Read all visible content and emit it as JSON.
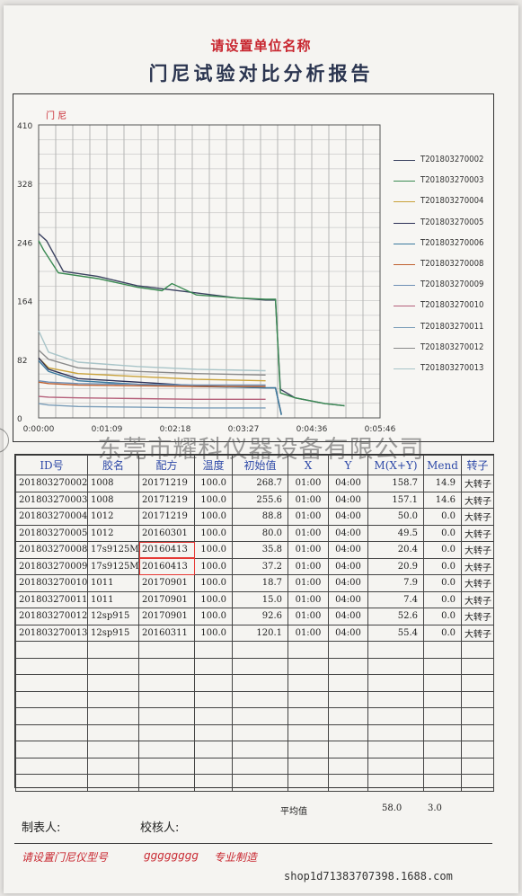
{
  "header": {
    "company": "请设置单位名称",
    "title": "门尼试验对比分析报告"
  },
  "chart_data": {
    "type": "line",
    "ylabel": "门 尼",
    "yticks": [
      "410",
      "328",
      "246",
      "164",
      "82",
      "0"
    ],
    "xticks": [
      "0:00:00",
      "0:01:09",
      "0:02:18",
      "0:03:27",
      "0:04:36",
      "0:05:46"
    ],
    "xlim": [
      0,
      346
    ],
    "ylim": [
      0,
      410
    ],
    "series": [
      {
        "name": "T201803270002",
        "color": "#3b4260",
        "x": [
          0,
          8,
          25,
          60,
          100,
          160,
          200,
          230,
          240,
          245,
          260,
          290,
          310
        ],
        "y": [
          258,
          248,
          205,
          198,
          185,
          175,
          168,
          165,
          165,
          40,
          28,
          20,
          17
        ]
      },
      {
        "name": "T201803270003",
        "color": "#3a8a52",
        "x": [
          0,
          5,
          20,
          60,
          100,
          125,
          135,
          160,
          200,
          230,
          240,
          245,
          260,
          290,
          310
        ],
        "y": [
          248,
          235,
          203,
          195,
          183,
          178,
          188,
          172,
          168,
          166,
          166,
          35,
          28,
          20,
          17
        ]
      },
      {
        "name": "T201803270004",
        "color": "#c9a23a",
        "x": [
          0,
          10,
          40,
          100,
          160,
          230
        ],
        "y": [
          84,
          70,
          62,
          58,
          54,
          52
        ]
      },
      {
        "name": "T201803270005",
        "color": "#2b2f55",
        "x": [
          0,
          10,
          40,
          100,
          160,
          230,
          240,
          246
        ],
        "y": [
          84,
          68,
          55,
          50,
          45,
          42,
          42,
          5
        ]
      },
      {
        "name": "T201803270006",
        "color": "#3b7a9e",
        "x": [
          0,
          10,
          40,
          100,
          160,
          230,
          240,
          246
        ],
        "y": [
          80,
          65,
          52,
          47,
          44,
          42,
          42,
          4
        ]
      },
      {
        "name": "T201803270008",
        "color": "#c0602f",
        "x": [
          0,
          10,
          40,
          100,
          160,
          230
        ],
        "y": [
          50,
          48,
          46,
          45,
          44,
          44
        ]
      },
      {
        "name": "T201803270009",
        "color": "#6e8fb5",
        "x": [
          0,
          10,
          40,
          100,
          160,
          230
        ],
        "y": [
          52,
          50,
          48,
          47,
          46,
          46
        ]
      },
      {
        "name": "T201803270010",
        "color": "#b5607a",
        "x": [
          0,
          10,
          40,
          100,
          160,
          230
        ],
        "y": [
          30,
          29,
          28,
          27,
          26,
          26
        ]
      },
      {
        "name": "T201803270011",
        "color": "#7a9db8",
        "x": [
          0,
          10,
          40,
          100,
          160,
          230
        ],
        "y": [
          20,
          18,
          16,
          15,
          14,
          14
        ]
      },
      {
        "name": "T201803270012",
        "color": "#8a8a8a",
        "x": [
          0,
          10,
          40,
          100,
          160,
          230
        ],
        "y": [
          95,
          82,
          70,
          65,
          62,
          60
        ]
      },
      {
        "name": "T201803270013",
        "color": "#a8c4c8",
        "x": [
          0,
          10,
          40,
          100,
          160,
          230
        ],
        "y": [
          122,
          92,
          78,
          72,
          68,
          66
        ]
      }
    ]
  },
  "table": {
    "headers": [
      "ID号",
      "胶名",
      "配方",
      "温度",
      "初始值",
      "X",
      "Y",
      "M(X+Y)",
      "Mend",
      "转子"
    ],
    "rows": [
      [
        "201803270002",
        "1008",
        "20171219",
        "100.0",
        "268.7",
        "01:00",
        "04:00",
        "158.7",
        "14.9",
        "大转子"
      ],
      [
        "201803270003",
        "1008",
        "20171219",
        "100.0",
        "255.6",
        "01:00",
        "04:00",
        "157.1",
        "14.6",
        "大转子"
      ],
      [
        "201803270004",
        "1012",
        "20171219",
        "100.0",
        "88.8",
        "01:00",
        "04:00",
        "50.0",
        "0.0",
        "大转子"
      ],
      [
        "201803270005",
        "1012",
        "20160301",
        "100.0",
        "80.0",
        "01:00",
        "04:00",
        "49.5",
        "0.0",
        "大转子"
      ],
      [
        "201803270008",
        "17s9125M",
        "20160413",
        "100.0",
        "35.8",
        "01:00",
        "04:00",
        "20.4",
        "0.0",
        "大转子"
      ],
      [
        "201803270009",
        "17s9125M",
        "20160413",
        "100.0",
        "37.2",
        "01:00",
        "04:00",
        "20.9",
        "0.0",
        "大转子"
      ],
      [
        "201803270010",
        "1011",
        "20170901",
        "100.0",
        "18.7",
        "01:00",
        "04:00",
        "7.9",
        "0.0",
        "大转子"
      ],
      [
        "201803270011",
        "1011",
        "20170901",
        "100.0",
        "15.0",
        "01:00",
        "04:00",
        "7.4",
        "0.0",
        "大转子"
      ],
      [
        "201803270012",
        "12sp915",
        "20170901",
        "100.0",
        "92.6",
        "01:00",
        "04:00",
        "52.6",
        "0.0",
        "大转子"
      ],
      [
        "201803270013",
        "12sp915",
        "20160311",
        "100.0",
        "120.1",
        "01:00",
        "04:00",
        "55.4",
        "0.0",
        "大转子"
      ]
    ],
    "empty_rows": 9
  },
  "average": {
    "label": "平均值",
    "m": "58.0",
    "mend": "3.0"
  },
  "sign": {
    "maker": "制表人:",
    "checker": "校核人:"
  },
  "footer": {
    "model": "请设置门尼仪型号",
    "code": "gggggggg",
    "made": "专业制造"
  },
  "watermark": "东莞市耀科仪器设备有限公司",
  "shop": "shop1d71383707398.1688.com"
}
